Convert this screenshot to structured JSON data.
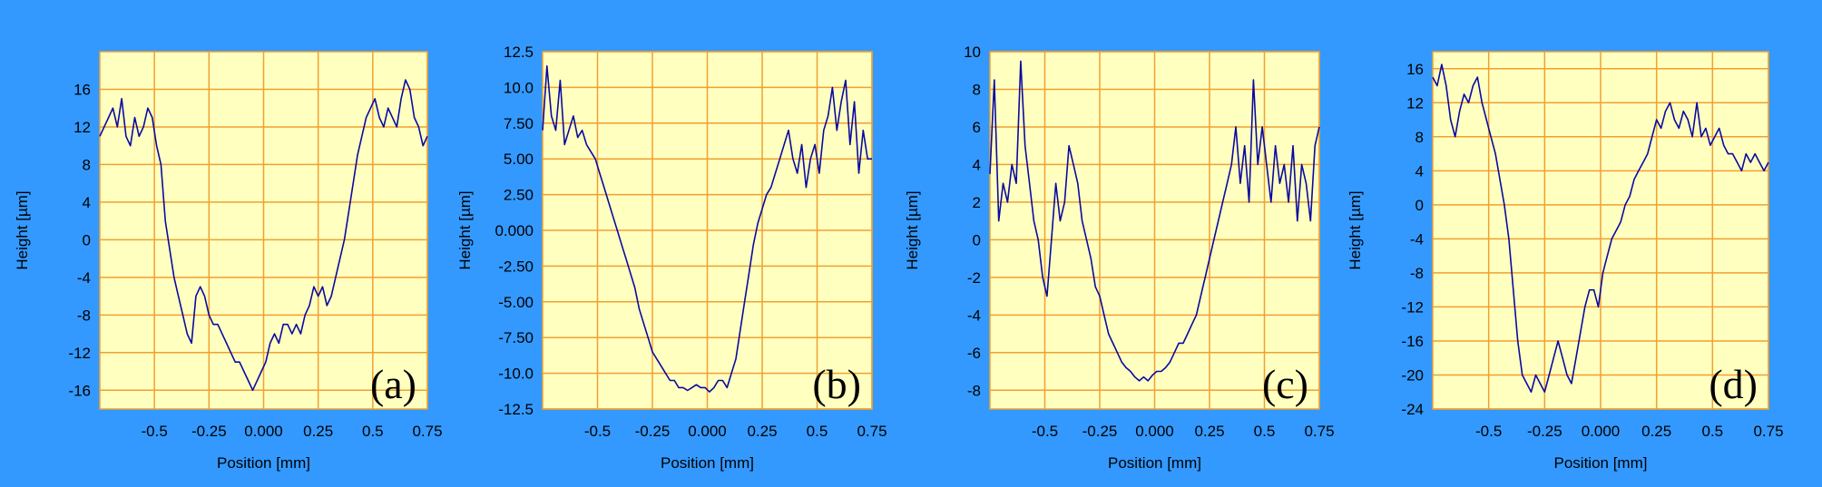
{
  "colors": {
    "background": "#3399ff",
    "plot_area": "#ffffc0",
    "grid": "#f0a030",
    "line": "#0a0aa0",
    "text": "#000000"
  },
  "chart_data": [
    {
      "type": "line",
      "label": "(a)",
      "xlabel": "Position [mm]",
      "ylabel": "Height [µm]",
      "xlim": [
        -0.75,
        0.75
      ],
      "ylim": [
        -18,
        20
      ],
      "xticks": [
        -0.5,
        -0.25,
        0.0,
        0.25,
        0.5,
        0.75
      ],
      "xtick_labels": [
        "-0.5",
        "-0.25",
        "0.000",
        "0.25",
        "0.5",
        "0.75"
      ],
      "yticks": [
        -16,
        -12,
        -8,
        -4,
        0,
        4,
        8,
        12,
        16
      ],
      "ytick_labels": [
        "-16",
        "-12",
        "-8",
        "-4",
        "0",
        "4",
        "8",
        "12",
        "16"
      ],
      "grid": true,
      "x": [
        -0.75,
        -0.73,
        -0.71,
        -0.69,
        -0.67,
        -0.65,
        -0.63,
        -0.61,
        -0.59,
        -0.57,
        -0.55,
        -0.53,
        -0.51,
        -0.49,
        -0.47,
        -0.45,
        -0.43,
        -0.41,
        -0.39,
        -0.37,
        -0.35,
        -0.33,
        -0.31,
        -0.29,
        -0.27,
        -0.25,
        -0.23,
        -0.21,
        -0.19,
        -0.17,
        -0.15,
        -0.13,
        -0.11,
        -0.09,
        -0.07,
        -0.05,
        -0.03,
        -0.01,
        0.01,
        0.03,
        0.05,
        0.07,
        0.09,
        0.11,
        0.13,
        0.15,
        0.17,
        0.19,
        0.21,
        0.23,
        0.25,
        0.27,
        0.29,
        0.31,
        0.33,
        0.35,
        0.37,
        0.39,
        0.41,
        0.43,
        0.45,
        0.47,
        0.49,
        0.51,
        0.53,
        0.55,
        0.57,
        0.59,
        0.61,
        0.63,
        0.65,
        0.67,
        0.69,
        0.71,
        0.73,
        0.75
      ],
      "y": [
        11,
        12,
        13,
        14,
        12,
        15,
        11,
        10,
        13,
        11,
        12,
        14,
        13,
        10,
        8,
        2,
        -1,
        -4,
        -6,
        -8,
        -10,
        -11,
        -6,
        -5,
        -6,
        -8,
        -9,
        -9,
        -10,
        -11,
        -12,
        -13,
        -13,
        -14,
        -15,
        -16,
        -15,
        -14,
        -13,
        -11,
        -10,
        -11,
        -9,
        -9,
        -10,
        -9,
        -10,
        -8,
        -7,
        -5,
        -6,
        -5,
        -7,
        -6,
        -4,
        -2,
        0,
        3,
        6,
        9,
        11,
        13,
        14,
        15,
        13,
        12,
        14,
        13,
        12,
        15,
        17,
        16,
        13,
        12,
        10,
        11
      ]
    },
    {
      "type": "line",
      "label": "(b)",
      "xlabel": "Position [mm]",
      "ylabel": "Height [µm]",
      "xlim": [
        -0.75,
        0.75
      ],
      "ylim": [
        -12.5,
        12.5
      ],
      "xticks": [
        -0.5,
        -0.25,
        0.0,
        0.25,
        0.5,
        0.75
      ],
      "xtick_labels": [
        "-0.5",
        "-0.25",
        "0.000",
        "0.25",
        "0.5",
        "0.75"
      ],
      "yticks": [
        -12.5,
        -10,
        -7.5,
        -5,
        -2.5,
        0,
        2.5,
        5,
        7.5,
        10,
        12.5
      ],
      "ytick_labels": [
        "-12.5",
        "-10.0",
        "-7.50",
        "-5.00",
        "-2.50",
        "0.000",
        "2.50",
        "5.00",
        "7.50",
        "10.0",
        "12.5"
      ],
      "grid": true,
      "x": [
        -0.75,
        -0.73,
        -0.71,
        -0.69,
        -0.67,
        -0.65,
        -0.63,
        -0.61,
        -0.59,
        -0.57,
        -0.55,
        -0.53,
        -0.51,
        -0.49,
        -0.47,
        -0.45,
        -0.43,
        -0.41,
        -0.39,
        -0.37,
        -0.35,
        -0.33,
        -0.31,
        -0.29,
        -0.27,
        -0.25,
        -0.23,
        -0.21,
        -0.19,
        -0.17,
        -0.15,
        -0.13,
        -0.11,
        -0.09,
        -0.07,
        -0.05,
        -0.03,
        -0.01,
        0.01,
        0.03,
        0.05,
        0.07,
        0.09,
        0.11,
        0.13,
        0.15,
        0.17,
        0.19,
        0.21,
        0.23,
        0.25,
        0.27,
        0.29,
        0.31,
        0.33,
        0.35,
        0.37,
        0.39,
        0.41,
        0.43,
        0.45,
        0.47,
        0.49,
        0.51,
        0.53,
        0.55,
        0.57,
        0.59,
        0.61,
        0.63,
        0.65,
        0.67,
        0.69,
        0.71,
        0.73,
        0.75
      ],
      "y": [
        7,
        11.5,
        8,
        7,
        10.5,
        6,
        7,
        8,
        6.5,
        7,
        6,
        5.5,
        5,
        4,
        3,
        2,
        1,
        0,
        -1,
        -2,
        -3,
        -4,
        -5.5,
        -6.5,
        -7.5,
        -8.5,
        -9,
        -9.5,
        -10,
        -10.5,
        -10.5,
        -11,
        -11,
        -11.2,
        -11,
        -10.8,
        -11,
        -11,
        -11.3,
        -11,
        -10.5,
        -10.5,
        -11,
        -10,
        -9,
        -7,
        -5,
        -3,
        -1,
        0.5,
        1.5,
        2.5,
        3,
        4,
        5,
        6,
        7,
        5,
        4,
        6,
        3,
        5,
        6,
        4,
        7,
        8,
        10,
        7,
        9,
        10.5,
        6,
        9,
        4,
        7,
        5,
        5
      ]
    },
    {
      "type": "line",
      "label": "(c)",
      "xlabel": "Position [mm]",
      "ylabel": "Height [µm]",
      "xlim": [
        -0.75,
        0.75
      ],
      "ylim": [
        -9,
        10
      ],
      "xticks": [
        -0.5,
        -0.25,
        0.0,
        0.25,
        0.5,
        0.75
      ],
      "xtick_labels": [
        "-0.5",
        "-0.25",
        "0.000",
        "0.25",
        "0.5",
        "0.75"
      ],
      "yticks": [
        -8,
        -6,
        -4,
        -2,
        0,
        2,
        4,
        6,
        8,
        10
      ],
      "ytick_labels": [
        "-8",
        "-6",
        "-4",
        "-2",
        "0",
        "2",
        "4",
        "6",
        "8",
        "10"
      ],
      "grid": true,
      "x": [
        -0.75,
        -0.73,
        -0.71,
        -0.69,
        -0.67,
        -0.65,
        -0.63,
        -0.61,
        -0.59,
        -0.57,
        -0.55,
        -0.53,
        -0.51,
        -0.49,
        -0.47,
        -0.45,
        -0.43,
        -0.41,
        -0.39,
        -0.37,
        -0.35,
        -0.33,
        -0.31,
        -0.29,
        -0.27,
        -0.25,
        -0.23,
        -0.21,
        -0.19,
        -0.17,
        -0.15,
        -0.13,
        -0.11,
        -0.09,
        -0.07,
        -0.05,
        -0.03,
        -0.01,
        0.01,
        0.03,
        0.05,
        0.07,
        0.09,
        0.11,
        0.13,
        0.15,
        0.17,
        0.19,
        0.21,
        0.23,
        0.25,
        0.27,
        0.29,
        0.31,
        0.33,
        0.35,
        0.37,
        0.39,
        0.41,
        0.43,
        0.45,
        0.47,
        0.49,
        0.51,
        0.53,
        0.55,
        0.57,
        0.59,
        0.61,
        0.63,
        0.65,
        0.67,
        0.69,
        0.71,
        0.73,
        0.75
      ],
      "y": [
        3.5,
        8.5,
        1,
        3,
        2,
        4,
        3,
        9.5,
        5,
        3,
        1,
        0,
        -2,
        -3,
        0,
        3,
        1,
        2,
        5,
        4,
        3,
        1,
        0,
        -1,
        -2.5,
        -3,
        -4,
        -5,
        -5.5,
        -6,
        -6.5,
        -6.8,
        -7,
        -7.3,
        -7.5,
        -7.3,
        -7.5,
        -7.2,
        -7,
        -7,
        -6.8,
        -6.5,
        -6,
        -5.5,
        -5.5,
        -5,
        -4.5,
        -4,
        -3,
        -2,
        -1,
        0,
        1,
        2,
        3,
        4,
        6,
        3,
        5,
        2,
        8.5,
        4,
        6,
        4,
        2,
        5,
        3,
        4,
        2,
        5,
        1,
        4,
        3,
        1,
        5,
        6
      ]
    },
    {
      "type": "line",
      "label": "(d)",
      "xlabel": "Position [mm]",
      "ylabel": "Height [µm]",
      "xlim": [
        -0.75,
        0.75
      ],
      "ylim": [
        -24,
        18
      ],
      "xticks": [
        -0.5,
        -0.25,
        0.0,
        0.25,
        0.5,
        0.75
      ],
      "xtick_labels": [
        "-0.5",
        "-0.25",
        "0.000",
        "0.25",
        "0.5",
        "0.75"
      ],
      "yticks": [
        -24,
        -20,
        -16,
        -12,
        -8,
        -4,
        0,
        4,
        8,
        12,
        16
      ],
      "ytick_labels": [
        "-24",
        "-20",
        "-16",
        "-12",
        "-8",
        "-4",
        "0",
        "4",
        "8",
        "12",
        "16"
      ],
      "grid": true,
      "x": [
        -0.75,
        -0.73,
        -0.71,
        -0.69,
        -0.67,
        -0.65,
        -0.63,
        -0.61,
        -0.59,
        -0.57,
        -0.55,
        -0.53,
        -0.51,
        -0.49,
        -0.47,
        -0.45,
        -0.43,
        -0.41,
        -0.39,
        -0.37,
        -0.35,
        -0.33,
        -0.31,
        -0.29,
        -0.27,
        -0.25,
        -0.23,
        -0.21,
        -0.19,
        -0.17,
        -0.15,
        -0.13,
        -0.11,
        -0.09,
        -0.07,
        -0.05,
        -0.03,
        -0.01,
        0.01,
        0.03,
        0.05,
        0.07,
        0.09,
        0.11,
        0.13,
        0.15,
        0.17,
        0.19,
        0.21,
        0.23,
        0.25,
        0.27,
        0.29,
        0.31,
        0.33,
        0.35,
        0.37,
        0.39,
        0.41,
        0.43,
        0.45,
        0.47,
        0.49,
        0.51,
        0.53,
        0.55,
        0.57,
        0.59,
        0.61,
        0.63,
        0.65,
        0.67,
        0.69,
        0.71,
        0.73,
        0.75
      ],
      "y": [
        15,
        14,
        16.5,
        14,
        10,
        8,
        11,
        13,
        12,
        14,
        15,
        12,
        10,
        8,
        6,
        3,
        0,
        -4,
        -10,
        -16,
        -20,
        -21,
        -22,
        -20,
        -21,
        -22,
        -20,
        -18,
        -16,
        -18,
        -20,
        -21,
        -18,
        -15,
        -12,
        -10,
        -10,
        -12,
        -8,
        -6,
        -4,
        -3,
        -2,
        0,
        1,
        3,
        4,
        5,
        6,
        8,
        10,
        9,
        11,
        12,
        10,
        9,
        11,
        10,
        8,
        12,
        8,
        9,
        7,
        8,
        9,
        7,
        6,
        6,
        5,
        4,
        6,
        5,
        6,
        5,
        4,
        5
      ]
    }
  ]
}
